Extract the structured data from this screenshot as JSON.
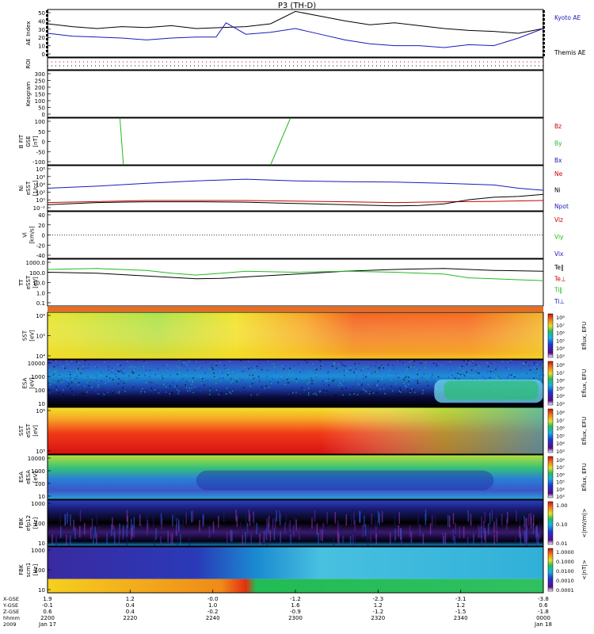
{
  "title": "P3 (TH-D)",
  "colors": {
    "red": "#cc0000",
    "green": "#22bb22",
    "blue": "#1a1ab8",
    "black": "#000000"
  },
  "chart_data": [
    {
      "type": "line",
      "id": "ae",
      "ylabel": [
        "AE Index"
      ],
      "yticks": [
        "50",
        "40",
        "30",
        "20",
        "10",
        "0"
      ],
      "ylim": [
        0,
        50
      ],
      "legend": [
        {
          "name": "Kyoto AE",
          "color": "blue"
        },
        {
          "name": "Themis AE",
          "color": "black"
        }
      ],
      "series": [
        {
          "name": "Themis AE",
          "color": "black",
          "x": [
            0,
            0.05,
            0.1,
            0.15,
            0.2,
            0.25,
            0.3,
            0.35,
            0.4,
            0.45,
            0.5,
            0.55,
            0.6,
            0.65,
            0.7,
            0.75,
            0.8,
            0.85,
            0.9,
            0.95,
            1
          ],
          "y": [
            35,
            32,
            30,
            32,
            31,
            33,
            30,
            31,
            32,
            35,
            48,
            43,
            38,
            34,
            36,
            33,
            30,
            28,
            27,
            25,
            30
          ]
        },
        {
          "name": "Kyoto AE",
          "color": "blue",
          "x": [
            0,
            0.05,
            0.1,
            0.15,
            0.2,
            0.25,
            0.3,
            0.34,
            0.36,
            0.4,
            0.45,
            0.5,
            0.55,
            0.6,
            0.65,
            0.7,
            0.75,
            0.8,
            0.85,
            0.9,
            0.95,
            1
          ],
          "y": [
            25,
            22,
            21,
            20,
            18,
            20,
            21,
            21,
            36,
            24,
            26,
            30,
            24,
            18,
            14,
            12,
            12,
            10,
            13,
            12,
            20,
            30
          ]
        }
      ]
    },
    {
      "type": "roi",
      "id": "roi",
      "ylabel": [
        "ROI"
      ]
    },
    {
      "type": "blank",
      "id": "keogram",
      "ylabel": [
        "Keogram"
      ],
      "yticks": [
        "300",
        "250",
        "200",
        "150",
        "100",
        "50",
        "0"
      ]
    },
    {
      "type": "line",
      "id": "bfit",
      "ylabel": [
        "B FIT",
        "GSE",
        "[nT]"
      ],
      "yticks": [
        "100",
        "50",
        "0",
        "-50",
        "-100"
      ],
      "ylim": [
        -100,
        100
      ],
      "legend": [
        {
          "name": "Bz",
          "color": "red"
        },
        {
          "name": "By",
          "color": "green"
        },
        {
          "name": "Bx",
          "color": "blue"
        }
      ],
      "series": [
        {
          "name": "By",
          "color": "green",
          "x": [
            0.146,
            0.153
          ],
          "y": [
            100,
            -100
          ]
        },
        {
          "name": "By",
          "color": "green",
          "x": [
            0.45,
            0.49
          ],
          "y": [
            -100,
            100
          ]
        }
      ]
    },
    {
      "type": "line",
      "id": "ni",
      "ylabel": [
        "Ni",
        "eSST",
        "[1/cc]"
      ],
      "scale": "log",
      "yticks": [
        "10⁸",
        "10⁶",
        "10⁴",
        "10²",
        "10⁰",
        "10⁻²"
      ],
      "legend": [
        {
          "name": "Ne",
          "color": "red"
        },
        {
          "name": "Ni",
          "color": "black"
        },
        {
          "name": "Npot",
          "color": "blue"
        }
      ],
      "series": [
        {
          "name": "Npot",
          "color": "blue",
          "x": [
            0,
            0.1,
            0.2,
            0.3,
            0.4,
            0.5,
            0.6,
            0.7,
            0.8,
            0.9,
            0.95,
            1
          ],
          "y": [
            3,
            3.5,
            4.2,
            4.8,
            5.2,
            4.8,
            4.6,
            4.5,
            4.2,
            3.8,
            3,
            2.5
          ]
        },
        {
          "name": "Ne",
          "color": "red",
          "x": [
            0,
            0.2,
            0.4,
            0.6,
            0.7,
            0.8,
            0.9,
            1
          ],
          "y": [
            -0.5,
            0,
            0,
            -0.3,
            -0.5,
            -0.3,
            -0.2,
            0
          ]
        },
        {
          "name": "Ni",
          "color": "black",
          "x": [
            0,
            0.1,
            0.2,
            0.3,
            0.4,
            0.5,
            0.6,
            0.7,
            0.75,
            0.8,
            0.85,
            0.9,
            0.95,
            1
          ],
          "y": [
            -1,
            -0.5,
            -0.3,
            -0.3,
            -0.4,
            -0.7,
            -1,
            -1.3,
            -1.2,
            -0.8,
            0.2,
            0.8,
            1,
            1.5
          ]
        }
      ]
    },
    {
      "type": "line",
      "id": "vi",
      "ylabel": [
        "Vi",
        "[km/s]"
      ],
      "yticks": [
        "40",
        "20",
        "0",
        "-20",
        "-40"
      ],
      "ylim": [
        -50,
        50
      ],
      "legend": [
        {
          "name": "Viz",
          "color": "red"
        },
        {
          "name": "Viy",
          "color": "green"
        },
        {
          "name": "Vix",
          "color": "blue"
        }
      ],
      "series": []
    },
    {
      "type": "line",
      "id": "tt",
      "ylabel": [
        "TT",
        "eSST",
        "[eV]"
      ],
      "scale": "log",
      "yticks": [
        "1000.0",
        "100.0",
        "10.0",
        "1.0",
        "0.1"
      ],
      "legend": [
        {
          "name": "Te‖",
          "color": "black"
        },
        {
          "name": "Te⊥",
          "color": "red"
        },
        {
          "name": "Ti‖",
          "color": "green"
        },
        {
          "name": "Ti⊥",
          "color": "blue"
        }
      ],
      "series": [
        {
          "name": "Te‖",
          "color": "black",
          "x": [
            0,
            0.1,
            0.2,
            0.3,
            0.35,
            0.4,
            0.5,
            0.6,
            0.7,
            0.8,
            0.9,
            1
          ],
          "y": [
            2.1,
            2.0,
            1.7,
            1.4,
            1.45,
            1.6,
            1.9,
            2.2,
            2.4,
            2.5,
            2.3,
            2.2
          ]
        },
        {
          "name": "Ti‖",
          "color": "green",
          "x": [
            0,
            0.1,
            0.2,
            0.25,
            0.3,
            0.35,
            0.4,
            0.5,
            0.6,
            0.7,
            0.8,
            0.85,
            0.9,
            0.95,
            1
          ],
          "y": [
            2.4,
            2.5,
            2.3,
            2.0,
            1.8,
            2.0,
            2.2,
            2.1,
            2.2,
            2.1,
            1.9,
            1.5,
            1.4,
            1.3,
            1.2
          ]
        }
      ]
    },
    {
      "type": "heatmap",
      "id": "sst1",
      "ylabel": [
        "SST",
        "[eV]"
      ],
      "yticks": [
        "10⁶",
        "10⁵",
        "10⁴"
      ],
      "cbar": [
        "10⁸",
        "10⁷",
        "10⁶",
        "10⁵",
        "10⁴",
        "10³"
      ],
      "clabel": "Eflux, EFU"
    },
    {
      "type": "heatmap",
      "id": "esa1",
      "ylabel": [
        "ESA",
        "[eV]"
      ],
      "yticks": [
        "10000",
        "1000",
        "100",
        "10"
      ],
      "cbar": [
        "10⁸",
        "10⁷",
        "10⁶",
        "10⁵",
        "10⁴",
        "10³"
      ],
      "clabel": "Eflux, EFU"
    },
    {
      "type": "heatmap",
      "id": "sst2",
      "ylabel": [
        "SST",
        "eSST",
        "[eV]"
      ],
      "yticks": [
        "10⁶",
        "10⁵"
      ],
      "cbar": [
        "10⁸",
        "10⁷",
        "10⁶",
        "10⁵",
        "10⁴",
        "10³"
      ],
      "clabel": "Eflux, EFU"
    },
    {
      "type": "heatmap",
      "id": "esa2",
      "ylabel": [
        "ESA",
        "eESA",
        "[eV]"
      ],
      "yticks": [
        "10000",
        "1000",
        "100",
        "10"
      ],
      "cbar": [
        "10⁸",
        "10⁷",
        "10⁶",
        "10⁵",
        "10⁴",
        "10³"
      ],
      "clabel": "Eflux, EFU"
    },
    {
      "type": "heatmap",
      "id": "fbk1",
      "ylabel": [
        "FBK",
        "efp12",
        "[Hz]"
      ],
      "yticks": [
        "1000",
        "100",
        "10"
      ],
      "cbar": [
        "1.00",
        "0.10",
        "0.01"
      ],
      "clabel": "<|mV/m|>"
    },
    {
      "type": "heatmap",
      "id": "fbk2",
      "ylabel": [
        "FBK",
        "scm1",
        "[Hz]"
      ],
      "yticks": [
        "1000",
        "100",
        "10"
      ],
      "cbar": [
        "1.0000",
        "0.1000",
        "0.0100",
        "0.0010",
        "0.0001"
      ],
      "clabel": "<|nT|>"
    }
  ],
  "xaxis": {
    "row_labels": [
      "X-GSE",
      "Y-GSE",
      "Z-GSE",
      "hhmm",
      "2009"
    ],
    "columns": [
      [
        "1.9",
        "1.2",
        "-0.0",
        "-1.2",
        "-2.3",
        "-3.1",
        "-3.8"
      ],
      [
        "-0.1",
        "0.4",
        "1.0",
        "1.6",
        "1.2",
        "1.2",
        "0.6"
      ],
      [
        "0.6",
        "0.4",
        "-0.2",
        "-0.9",
        "-1.2",
        "-1.5",
        "-1.8"
      ],
      [
        "2200",
        "2220",
        "2240",
        "2300",
        "2320",
        "2340",
        "0000"
      ],
      [
        "Jan 17",
        "",
        "",
        "",
        "",
        "",
        "Jan 18"
      ]
    ]
  }
}
